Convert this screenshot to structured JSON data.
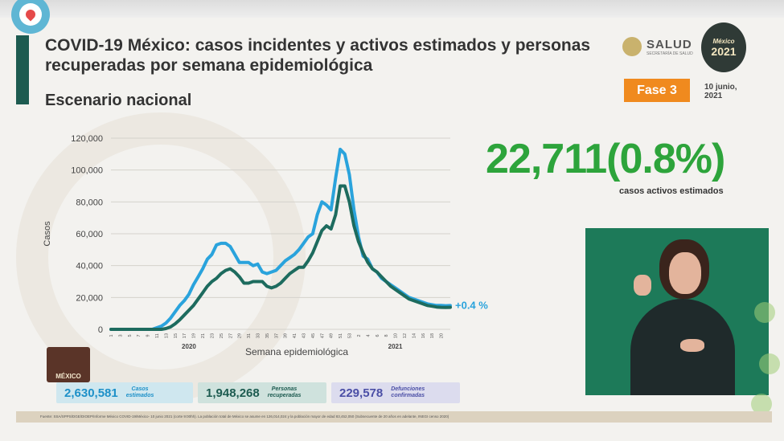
{
  "header": {
    "title": "COVID-19 México: casos incidentes y activos estimados y personas recuperadas por semana epidemiológica",
    "subtitle": "Escenario nacional",
    "salud_label": "SALUD",
    "salud_sub": "SECRETARÍA DE SALUD",
    "logo_year": "2021",
    "logo_text": "México",
    "fase": "Fase 3",
    "date_line1": "10 junio,",
    "date_line2": "2021"
  },
  "highlight": {
    "value": "22,711(0.8%)",
    "label": "casos activos estimados"
  },
  "stats": [
    {
      "value": "2,630,581",
      "label1": "Casos",
      "label2": "estimados"
    },
    {
      "value": "1,948,268",
      "label1": "Personas",
      "label2": "recuperadas"
    },
    {
      "value": "229,578",
      "label1": "Defunciones",
      "label2": "confirmadas"
    }
  ],
  "mx_logo_text": "MÉXICO",
  "footer_text": "Fuente: SSA/SPPS/DGE/DIOEP/Informe México COVID-19/México- 10 junio 2021 (corte 9:00hh). La población total de México se asume en 126,014,024 y la población mayor de edad 83,452,050 (Subsecuente de 20 años en adelante, INEGI censo 2020)",
  "colors": {
    "series_estimated": "#2aa3dc",
    "series_recovered": "#1d6b5e",
    "highlight": "#2da43b",
    "fase": "#f08a1e"
  },
  "chart_data": {
    "type": "line",
    "ylabel": "Casos",
    "xlabel": "Semana epidemiológica",
    "ylim": [
      0,
      120000
    ],
    "yticks": [
      "0",
      "20,000",
      "40,000",
      "60,000",
      "80,000",
      "100,000",
      "120,000"
    ],
    "year_labels": [
      "2020",
      "2021"
    ],
    "annotation": "+0.4 %",
    "x": [
      1,
      2,
      3,
      4,
      5,
      6,
      7,
      8,
      9,
      10,
      11,
      12,
      13,
      14,
      15,
      16,
      17,
      18,
      19,
      20,
      21,
      22,
      23,
      24,
      25,
      26,
      27,
      28,
      29,
      30,
      31,
      32,
      33,
      34,
      35,
      36,
      37,
      38,
      39,
      40,
      41,
      42,
      43,
      44,
      45,
      46,
      47,
      48,
      49,
      50,
      51,
      52,
      53,
      1,
      2,
      3,
      4,
      5,
      6,
      7,
      8,
      9,
      10,
      11,
      12,
      13,
      14,
      15,
      16,
      17,
      18,
      19,
      20,
      21,
      22
    ],
    "xtick_labels": [
      "1",
      "3",
      "5",
      "7",
      "9",
      "11",
      "13",
      "15",
      "17",
      "19",
      "21",
      "23",
      "25",
      "27",
      "29",
      "31",
      "33",
      "35",
      "37",
      "39",
      "41",
      "43",
      "45",
      "47",
      "49",
      "51",
      "53",
      "2",
      "4",
      "6",
      "8",
      "10",
      "12",
      "14",
      "16",
      "18",
      "20"
    ],
    "series": [
      {
        "values": [
          0,
          0,
          0,
          0,
          0,
          0,
          0,
          0,
          0,
          0,
          1000,
          2000,
          4000,
          7000,
          11000,
          15000,
          18000,
          22000,
          28000,
          33000,
          38000,
          44000,
          47000,
          53000,
          54000,
          54000,
          52000,
          47000,
          42000,
          42000,
          42000,
          40000,
          41000,
          36000,
          35000,
          36000,
          37000,
          40000,
          43000,
          45000,
          47000,
          50000,
          54000,
          58000,
          60000,
          72000,
          80000,
          78000,
          75000,
          95000,
          113000,
          110000,
          97000,
          75000,
          58000,
          46000,
          44000,
          38000,
          36000,
          32000,
          30000,
          28000,
          26000,
          24000,
          22000,
          20000,
          19000,
          18000,
          17000,
          16000,
          15500,
          15000,
          15000,
          14800,
          14900
        ]
      },
      {
        "values": [
          0,
          0,
          0,
          0,
          0,
          0,
          0,
          0,
          0,
          0,
          0,
          0,
          500,
          1500,
          3500,
          6000,
          9000,
          12000,
          15000,
          19000,
          23000,
          27000,
          30000,
          32000,
          35000,
          37000,
          38000,
          36000,
          33000,
          29000,
          29000,
          30000,
          30000,
          30000,
          27000,
          26000,
          27000,
          29000,
          32000,
          35000,
          37000,
          39000,
          39000,
          43000,
          48000,
          55000,
          62000,
          65000,
          63000,
          72000,
          90000,
          90000,
          80000,
          65000,
          55000,
          48000,
          42000,
          38000,
          36000,
          33000,
          30000,
          27000,
          25000,
          23000,
          21000,
          19000,
          18000,
          17000,
          16000,
          15000,
          14500,
          14000,
          13800,
          13700,
          13800
        ]
      }
    ]
  }
}
